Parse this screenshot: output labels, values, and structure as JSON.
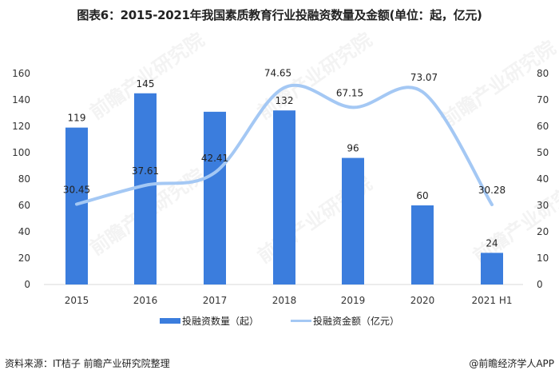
{
  "title": "图表6：2015-2021年我国素质教育行业投融资数量及金额(单位：起，亿元)",
  "legend": {
    "bar_label": "投融资数量（起）",
    "line_label": "投融资金额（亿元）"
  },
  "footer": {
    "source": "资料来源：IT桔子 前瞻产业研究院整理",
    "credit": "@前瞻经济学人APP"
  },
  "watermark": "前瞻产业研究院",
  "colors": {
    "bar": "#3b7ddd",
    "line": "#a4c8f4"
  },
  "chart_data": {
    "type": "bar+line",
    "title": "图表6：2015-2021年我国素质教育行业投融资数量及金额(单位：起，亿元)",
    "categories": [
      "2015",
      "2016",
      "2017",
      "2018",
      "2019",
      "2020",
      "2021 H1"
    ],
    "series": [
      {
        "name": "投融资数量（起）",
        "type": "bar",
        "axis": "left",
        "values": [
          119,
          145,
          131,
          132,
          96,
          60,
          24
        ],
        "labels": [
          "119",
          "145",
          "",
          "132",
          "96",
          "60",
          "24"
        ]
      },
      {
        "name": "投融资金额（亿元）",
        "type": "line",
        "axis": "right",
        "values": [
          30.45,
          37.61,
          42.41,
          74.65,
          67.15,
          73.07,
          30.28
        ],
        "labels": [
          "30.45",
          "37.61",
          "42.41",
          "74.65",
          "67.15",
          "73.07",
          "30.28"
        ]
      }
    ],
    "left_axis": {
      "ylim": [
        0,
        160
      ],
      "ticks": [
        "0",
        "20",
        "40",
        "60",
        "80",
        "100",
        "120",
        "140",
        "160"
      ]
    },
    "right_axis": {
      "ylim": [
        0,
        80
      ],
      "ticks": [
        "0",
        "10",
        "20",
        "30",
        "40",
        "50",
        "60",
        "70",
        "80"
      ]
    },
    "xlabel": "",
    "ylabel": "",
    "grid": false,
    "legend_position": "bottom"
  }
}
